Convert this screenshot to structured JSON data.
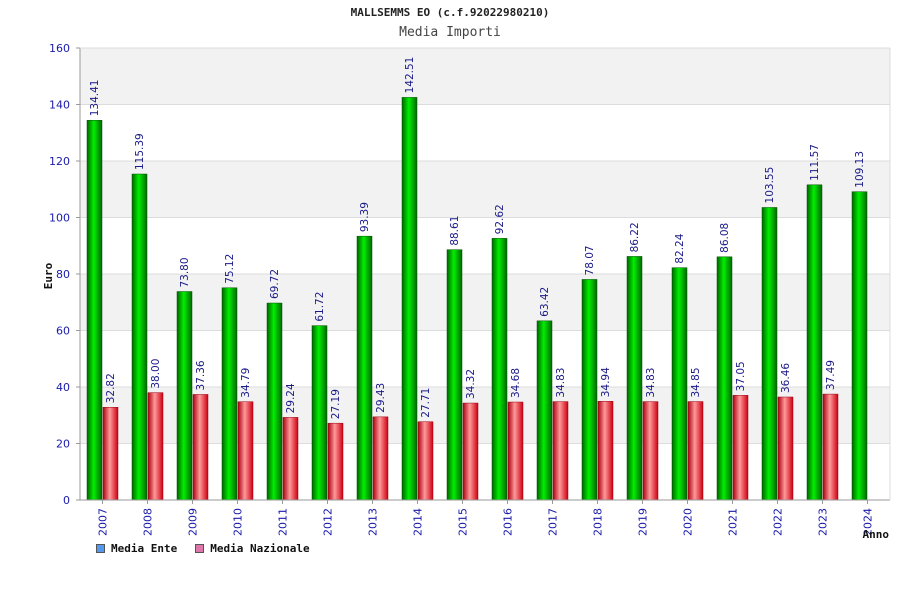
{
  "chart_data": {
    "type": "bar",
    "title": "MALLSEMMS EO (c.f.92022980210)",
    "subtitle": "Media Importi",
    "ylabel": "Euro",
    "xlabel": "Anno",
    "ylim": [
      0,
      160
    ],
    "yticks": [
      "0",
      "20",
      "40",
      "60",
      "80",
      "100",
      "120",
      "140",
      "160"
    ],
    "categories": [
      "2007",
      "2008",
      "2009",
      "2010",
      "2011",
      "2012",
      "2013",
      "2014",
      "2015",
      "2016",
      "2017",
      "2018",
      "2019",
      "2020",
      "2021",
      "2022",
      "2023",
      "2024"
    ],
    "series": [
      {
        "name": "Media Ente",
        "color": "#00cc00",
        "legend_color": "#5599ee",
        "values": [
          134.41,
          115.39,
          73.8,
          75.12,
          69.72,
          61.72,
          93.39,
          142.51,
          88.61,
          92.62,
          63.42,
          78.07,
          86.22,
          82.24,
          86.08,
          103.55,
          111.57,
          109.13
        ],
        "labels": [
          "134.41",
          "115.39",
          "73.80",
          "75.12",
          "69.72",
          "61.72",
          "93.39",
          "142.51",
          "88.61",
          "92.62",
          "63.42",
          "78.07",
          "86.22",
          "82.24",
          "86.08",
          "103.55",
          "111.57",
          "109.13"
        ]
      },
      {
        "name": "Media Nazionale",
        "color": "#ee2233",
        "legend_color": "#dd77aa",
        "values": [
          32.82,
          38.0,
          37.36,
          34.79,
          29.24,
          27.19,
          29.43,
          27.71,
          34.32,
          34.68,
          34.83,
          34.94,
          34.83,
          34.85,
          37.05,
          36.46,
          37.49,
          null
        ],
        "labels": [
          "32.82",
          "38.00",
          "37.36",
          "34.79",
          "29.24",
          "27.19",
          "29.43",
          "27.71",
          "34.32",
          "34.68",
          "34.83",
          "34.94",
          "34.83",
          "34.85",
          "37.05",
          "36.46",
          "37.49",
          ""
        ]
      }
    ],
    "grid": true,
    "legend_position": "bottom-left"
  }
}
